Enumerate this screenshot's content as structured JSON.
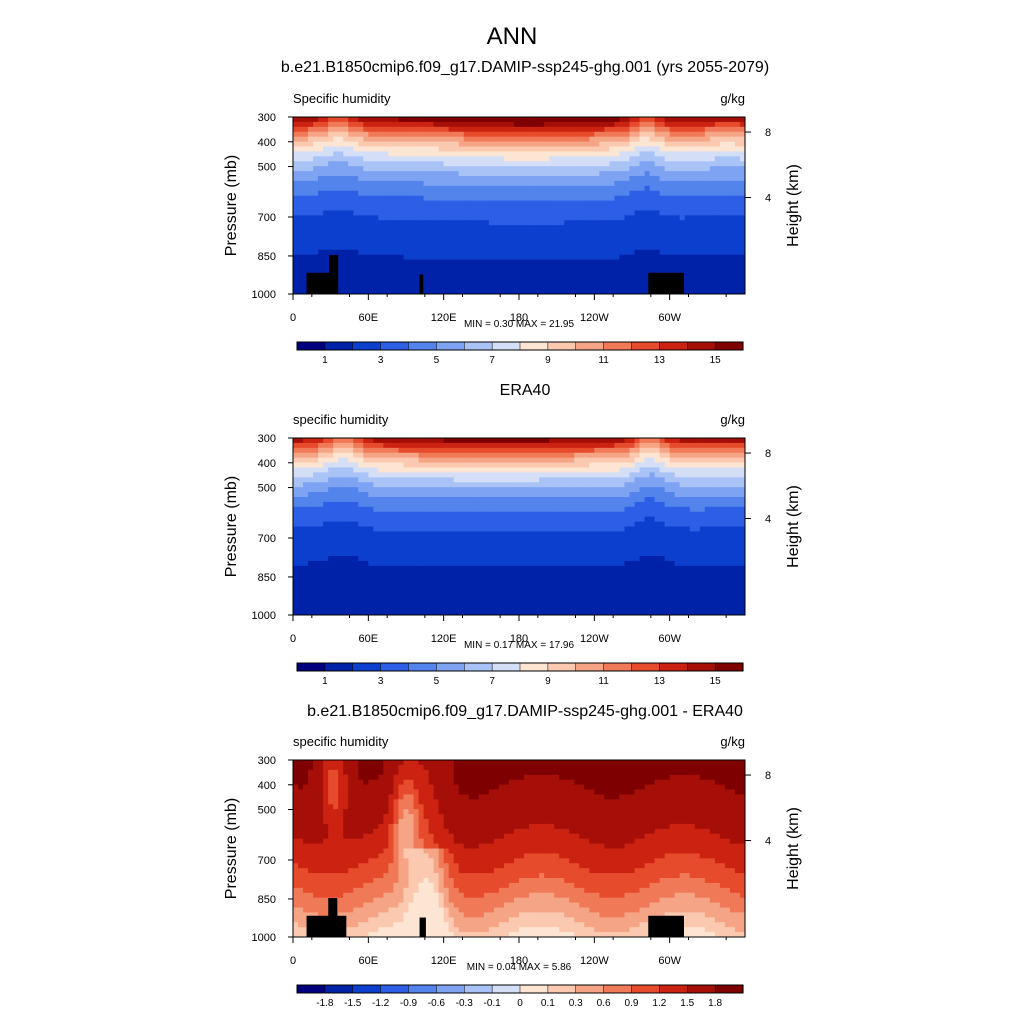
{
  "title": "ANN",
  "colors": {
    "land": "#000000",
    "frame": "#000000"
  },
  "chart_data": [
    {
      "type": "heatmap",
      "title": "b.e21.B1850cmip6.f09_g17.DAMIP-ssp245-ghg.001 (yrs 2055-2079)",
      "variable_label": "Specific humidity",
      "units": "g/kg",
      "ylabel": "Pressure (mb)",
      "ylabel_right": "Height (km)",
      "y_ticks": [
        "300",
        "400",
        "500",
        "700",
        "850",
        "1000"
      ],
      "x_ticks": [
        "0",
        "60E",
        "120E",
        "180",
        "120W",
        "60W"
      ],
      "right_ticks": [
        "8",
        "4"
      ],
      "stats": "MIN =   0.30  MAX =  21.95",
      "levels": [
        "1",
        "3",
        "5",
        "7",
        "9",
        "11",
        "13",
        "15"
      ],
      "colorbar": [
        "#00007f",
        "#0022a8",
        "#0d3fcf",
        "#2c5ee6",
        "#5384ec",
        "#7ea3f2",
        "#a9c3f7",
        "#d4def7",
        "#fde5d4",
        "#fbc9b0",
        "#f5a585",
        "#f07a58",
        "#e64b2c",
        "#cc2211",
        "#a50f08",
        "#7f0000"
      ]
    },
    {
      "type": "heatmap",
      "title": "ERA40",
      "variable_label": "specific humidity",
      "units": "g/kg",
      "ylabel": "Pressure (mb)",
      "ylabel_right": "Height (km)",
      "y_ticks": [
        "300",
        "400",
        "500",
        "700",
        "850",
        "1000"
      ],
      "x_ticks": [
        "0",
        "60E",
        "120E",
        "180",
        "120W",
        "60W"
      ],
      "right_ticks": [
        "8",
        "4"
      ],
      "stats": "MIN =   0.17  MAX =  17.96",
      "levels": [
        "1",
        "3",
        "5",
        "7",
        "9",
        "11",
        "13",
        "15"
      ],
      "colorbar": [
        "#00007f",
        "#0022a8",
        "#0d3fcf",
        "#2c5ee6",
        "#5384ec",
        "#7ea3f2",
        "#a9c3f7",
        "#d4def7",
        "#fde5d4",
        "#fbc9b0",
        "#f5a585",
        "#f07a58",
        "#e64b2c",
        "#cc2211",
        "#a50f08",
        "#7f0000"
      ]
    },
    {
      "type": "heatmap",
      "title": "b.e21.B1850cmip6.f09_g17.DAMIP-ssp245-ghg.001 - ERA40",
      "variable_label": "specific humidity",
      "units": "g/kg",
      "ylabel": "Pressure (mb)",
      "ylabel_right": "Height (km)",
      "y_ticks": [
        "300",
        "400",
        "500",
        "700",
        "850",
        "1000"
      ],
      "x_ticks": [
        "0",
        "60E",
        "120E",
        "180",
        "120W",
        "60W"
      ],
      "right_ticks": [
        "8",
        "4"
      ],
      "stats": "MIN =   0.04  MAX =   5.86",
      "levels": [
        "-1.8",
        "-1.5",
        "-1.2",
        "-0.9",
        "-0.6",
        "-0.3",
        "-0.1",
        "0",
        "0.1",
        "0.3",
        "0.6",
        "0.9",
        "1.2",
        "1.5",
        "1.8"
      ],
      "colorbar": [
        "#00007f",
        "#0022a8",
        "#0d3fcf",
        "#2c5ee6",
        "#5384ec",
        "#7ea3f2",
        "#a9c3f7",
        "#d4def7",
        "#fde5d4",
        "#fbc9b0",
        "#f5a585",
        "#f07a58",
        "#e64b2c",
        "#cc2211",
        "#a50f08",
        "#7f0000"
      ]
    }
  ]
}
